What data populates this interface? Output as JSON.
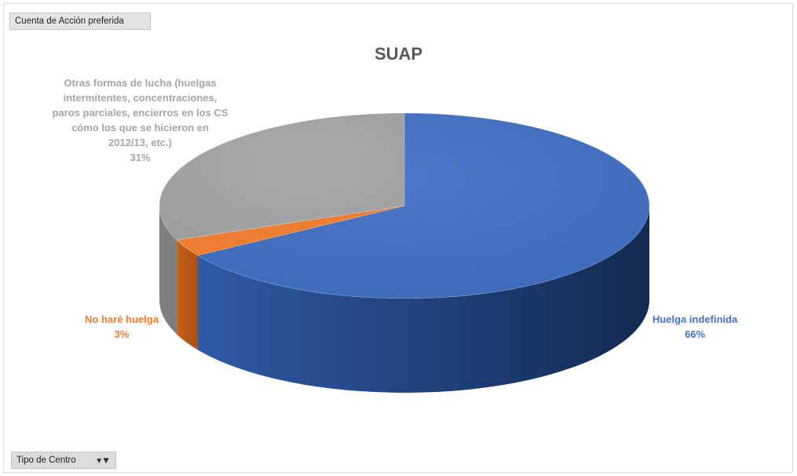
{
  "pivot": {
    "value_field": "Cuenta de Acción preferida",
    "axis_field": "Tipo de Centro",
    "filter_icon": "filter-icon"
  },
  "chart_data": {
    "type": "pie",
    "title": "SUAP",
    "style": "3d",
    "slices": [
      {
        "label": "Huelga indefinida",
        "value": 66,
        "percent_label": "66%",
        "color": "#4472c4"
      },
      {
        "label": "No haré huelga",
        "value": 3,
        "percent_label": "3%",
        "color": "#ed7d31"
      },
      {
        "label": "Otras formas de lucha (huelgas intermitentes, concentraciones, paros parciales, encierros en los CS cómo los que se hicieron en 2012/13, etc.)",
        "value": 31,
        "percent_label": "31%",
        "color": "#a5a5a5"
      }
    ]
  }
}
